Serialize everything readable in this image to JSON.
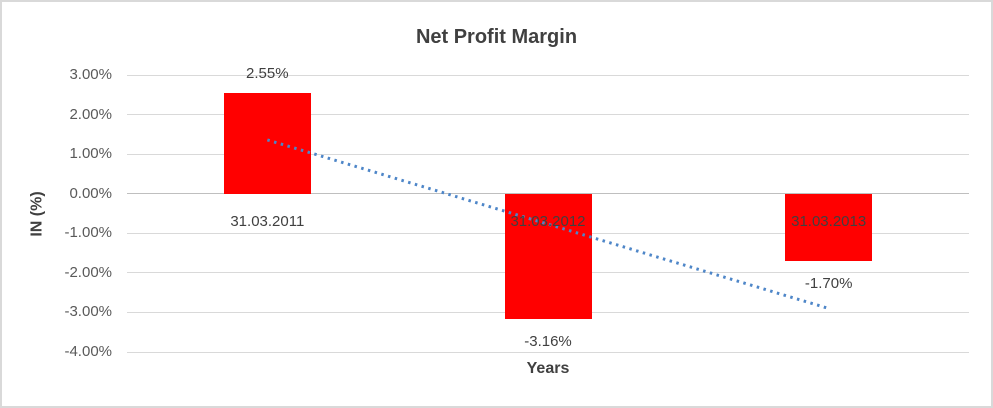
{
  "chart_data": {
    "type": "bar",
    "title": "Net Profit Margin",
    "xlabel": "Years",
    "ylabel": "IN (%)",
    "categories": [
      "31.03.2011",
      "31.03.2012",
      "31.03.2013"
    ],
    "values": [
      2.55,
      -3.16,
      -1.7
    ],
    "data_labels": [
      "2.55%",
      "-3.16%",
      "-1.70%"
    ],
    "bar_color": "#FF0000",
    "ylim": [
      -4,
      3
    ],
    "ytick_values": [
      3,
      2,
      1,
      0,
      -1,
      -2,
      -3,
      -4
    ],
    "ytick_labels": [
      "3.00%",
      "2.00%",
      "1.00%",
      "0.00%",
      "-1.00%",
      "-2.00%",
      "-3.00%",
      "-4.00%"
    ],
    "grid": true,
    "legend": false,
    "trendline": {
      "type": "linear",
      "style": "dotted",
      "color": "#4E86C8",
      "start_value": 1.36,
      "end_value": -2.9
    }
  }
}
